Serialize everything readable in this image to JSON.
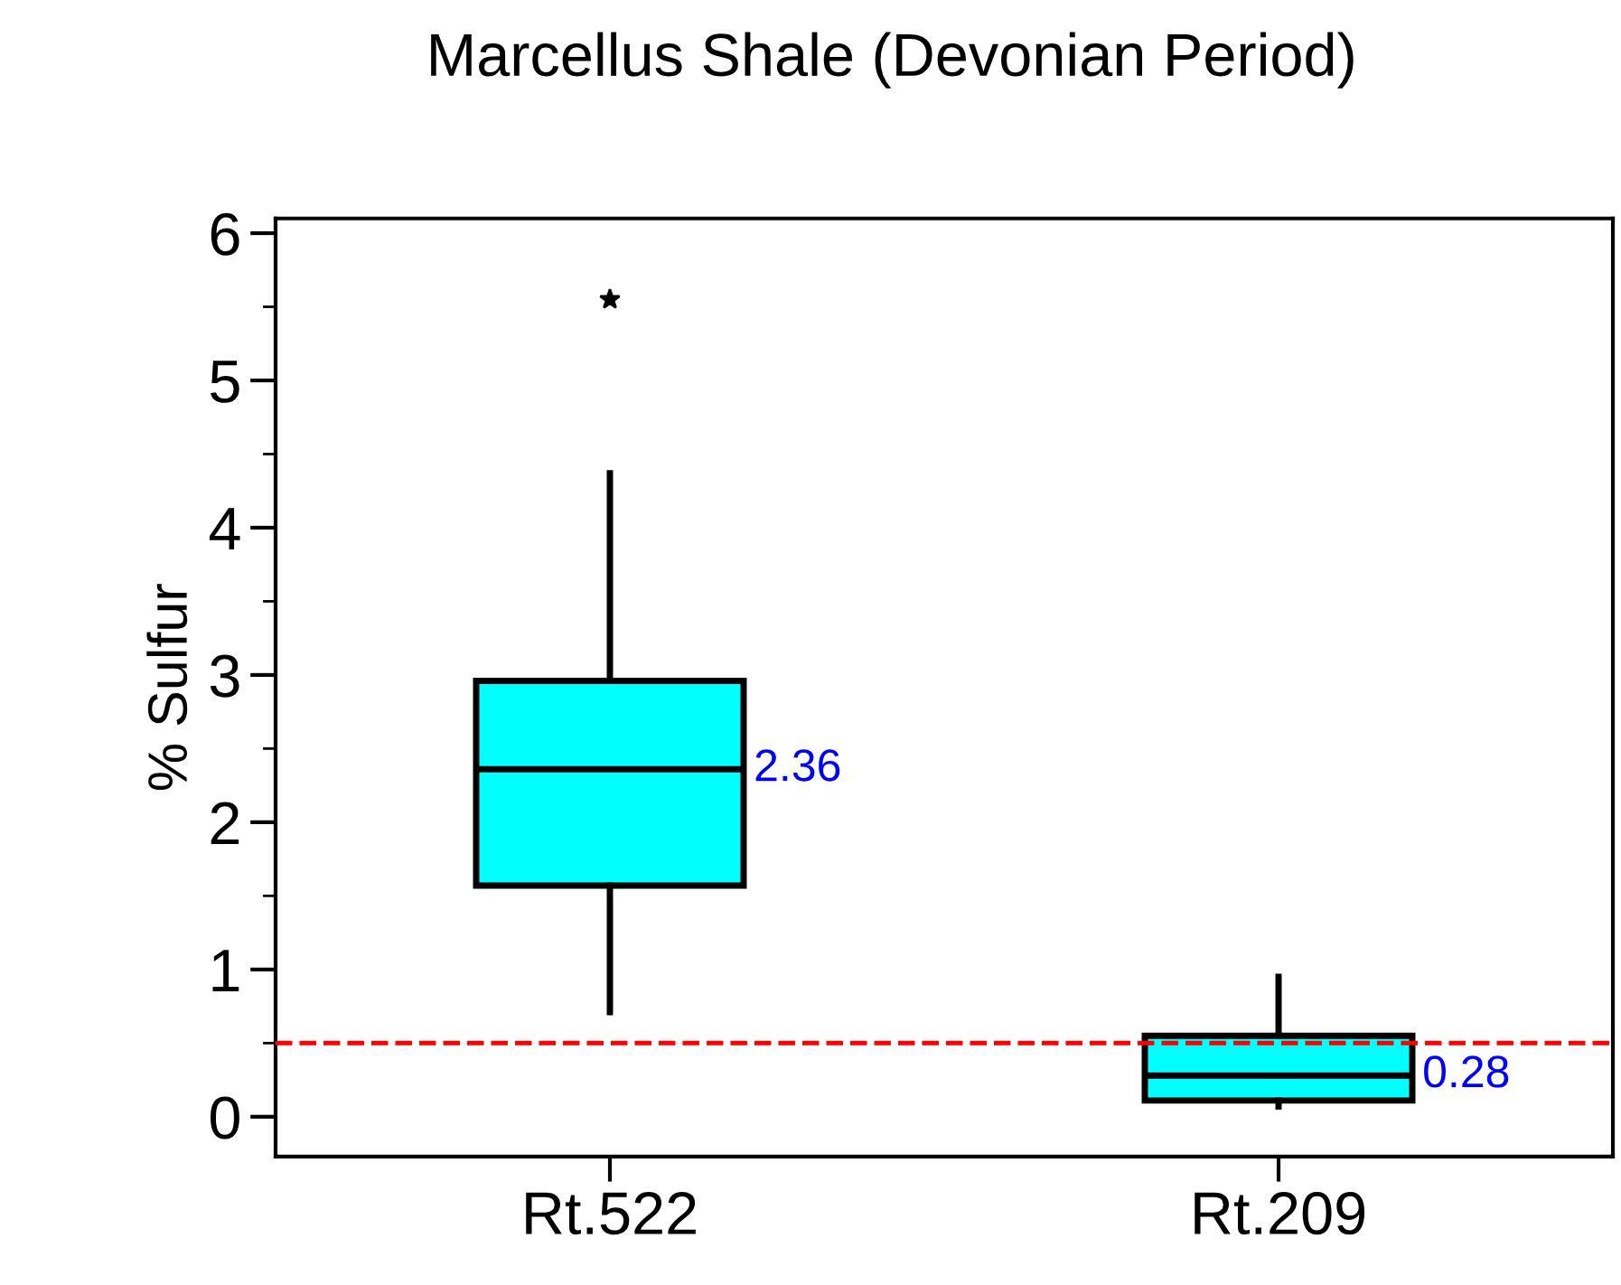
{
  "chart_data": {
    "type": "box",
    "title": "Marcellus Shale (Devonian Period)",
    "ylabel": "% Sulfur",
    "categories": [
      "Rt.522",
      "Rt.209"
    ],
    "boxes": [
      {
        "low": 0.71,
        "q1": 1.57,
        "median": 2.36,
        "q3": 2.96,
        "high": 4.37,
        "outliers": [
          5.55
        ]
      },
      {
        "low": 0.07,
        "q1": 0.11,
        "median": 0.28,
        "q3": 0.55,
        "high": 0.95
      }
    ],
    "color": "#00ffff",
    "ylim": [
      -0.27,
      6.1
    ],
    "yticks": [
      0,
      {
        "value": 0.5,
        "label": null
      },
      1,
      {
        "value": 1.5,
        "label": null
      },
      2,
      {
        "value": 2.5,
        "label": null
      },
      3,
      {
        "value": 3.5,
        "label": null
      },
      4,
      {
        "value": 4.5,
        "label": null
      },
      5,
      {
        "value": 5.5,
        "label": null
      },
      6
    ],
    "ref_lines": [
      {
        "axis": "y",
        "value": 0.5,
        "label": null,
        "color": "#ff0000",
        "line_style": "dashed"
      }
    ],
    "annotations": [
      "2.36",
      "0.28"
    ],
    "grid": false,
    "legend": false
  }
}
